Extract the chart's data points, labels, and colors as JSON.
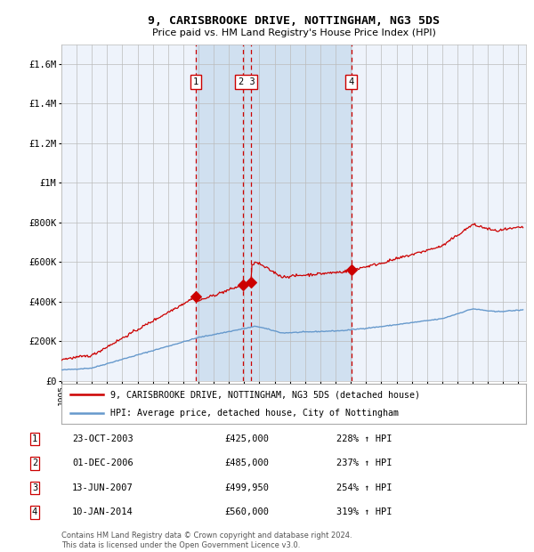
{
  "title": "9, CARISBROOKE DRIVE, NOTTINGHAM, NG3 5DS",
  "subtitle": "Price paid vs. HM Land Registry's House Price Index (HPI)",
  "footer_line1": "Contains HM Land Registry data © Crown copyright and database right 2024.",
  "footer_line2": "This data is licensed under the Open Government Licence v3.0.",
  "legend_house": "9, CARISBROOKE DRIVE, NOTTINGHAM, NG3 5DS (detached house)",
  "legend_hpi": "HPI: Average price, detached house, City of Nottingham",
  "transactions": [
    {
      "num": 1,
      "date": "23-OCT-2003",
      "price": "£425,000",
      "pct": "228% ↑ HPI",
      "year": 2003.81,
      "val": 425000
    },
    {
      "num": 2,
      "date": "01-DEC-2006",
      "price": "£485,000",
      "pct": "237% ↑ HPI",
      "year": 2006.92,
      "val": 485000
    },
    {
      "num": 3,
      "date": "13-JUN-2007",
      "price": "£499,950",
      "pct": "254% ↑ HPI",
      "year": 2007.45,
      "val": 499950
    },
    {
      "num": 4,
      "date": "10-JAN-2014",
      "price": "£560,000",
      "pct": "319% ↑ HPI",
      "year": 2014.03,
      "val": 560000
    }
  ],
  "vline_dates": [
    2003.81,
    2006.92,
    2007.45,
    2014.03
  ],
  "shaded_region": [
    2003.81,
    2014.03
  ],
  "ylim": [
    0,
    1700000
  ],
  "xlim": [
    1995.0,
    2025.5
  ],
  "yticks": [
    0,
    200000,
    400000,
    600000,
    800000,
    1000000,
    1200000,
    1400000,
    1600000
  ],
  "ytick_labels": [
    "£0",
    "£200K",
    "£400K",
    "£600K",
    "£800K",
    "£1M",
    "£1.2M",
    "£1.4M",
    "£1.6M"
  ],
  "house_color": "#cc0000",
  "hpi_color": "#6699cc",
  "background_color": "#ffffff",
  "plot_bg_color": "#eef3fb",
  "shaded_color": "#d0e0f0",
  "grid_color": "#bbbbbb",
  "vline_color": "#cc0000",
  "marker_color": "#cc0000",
  "box_color": "#cc0000",
  "title_fontsize": 9.5,
  "subtitle_fontsize": 8.0
}
